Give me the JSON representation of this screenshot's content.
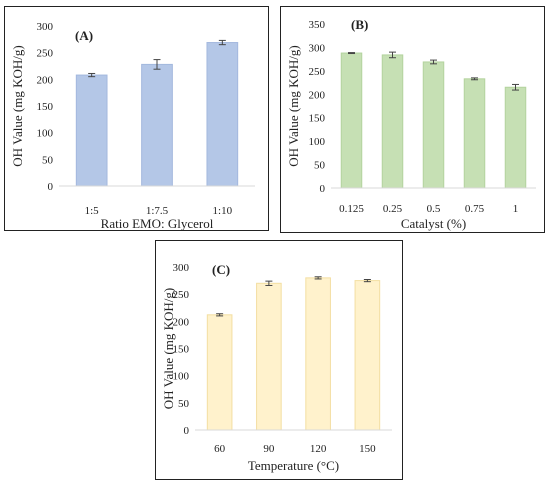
{
  "chart_data": [
    {
      "id": "a",
      "type": "bar",
      "panel_label": "(A)",
      "categories": [
        "1:5",
        "1:7.5",
        "1:10"
      ],
      "values": [
        208,
        228,
        269
      ],
      "errors": [
        3,
        9,
        4
      ],
      "xlabel": "Ratio EMO: Glycerol",
      "ylabel": "OH Value (mg KOH/g)",
      "ylim": [
        0,
        300
      ],
      "yticks": [
        0,
        50,
        100,
        150,
        200,
        250,
        300
      ],
      "bar_color": "#b4c7e7",
      "bar_edge": "#a3b8de",
      "grid": false
    },
    {
      "id": "b",
      "type": "bar",
      "panel_label": "(B)",
      "categories": [
        "0.125",
        "0.25",
        "0.5",
        "0.75",
        "1"
      ],
      "values": [
        288,
        284,
        269,
        233,
        215
      ],
      "errors": [
        1,
        6,
        4,
        2,
        6
      ],
      "xlabel": "Catalyst (%)",
      "ylabel": "OH Value (mg KOH/g)",
      "ylim": [
        0,
        350
      ],
      "yticks": [
        0,
        50,
        100,
        150,
        200,
        250,
        300,
        350
      ],
      "bar_color": "#c6e0b4",
      "bar_edge": "#b3d39e",
      "grid": false
    },
    {
      "id": "c",
      "type": "bar",
      "panel_label": "(C)",
      "categories": [
        "60",
        "90",
        "120",
        "150"
      ],
      "values": [
        212,
        270,
        280,
        275
      ],
      "errors": [
        2,
        4,
        2,
        2
      ],
      "xlabel": "Temperature (°C)",
      "ylabel": "OH Value (mg KOH/g)",
      "ylim": [
        0,
        300
      ],
      "yticks": [
        0,
        50,
        100,
        150,
        200,
        250,
        300
      ],
      "bar_color": "#fff2cc",
      "bar_edge": "#f3dfa2",
      "grid": false
    }
  ]
}
